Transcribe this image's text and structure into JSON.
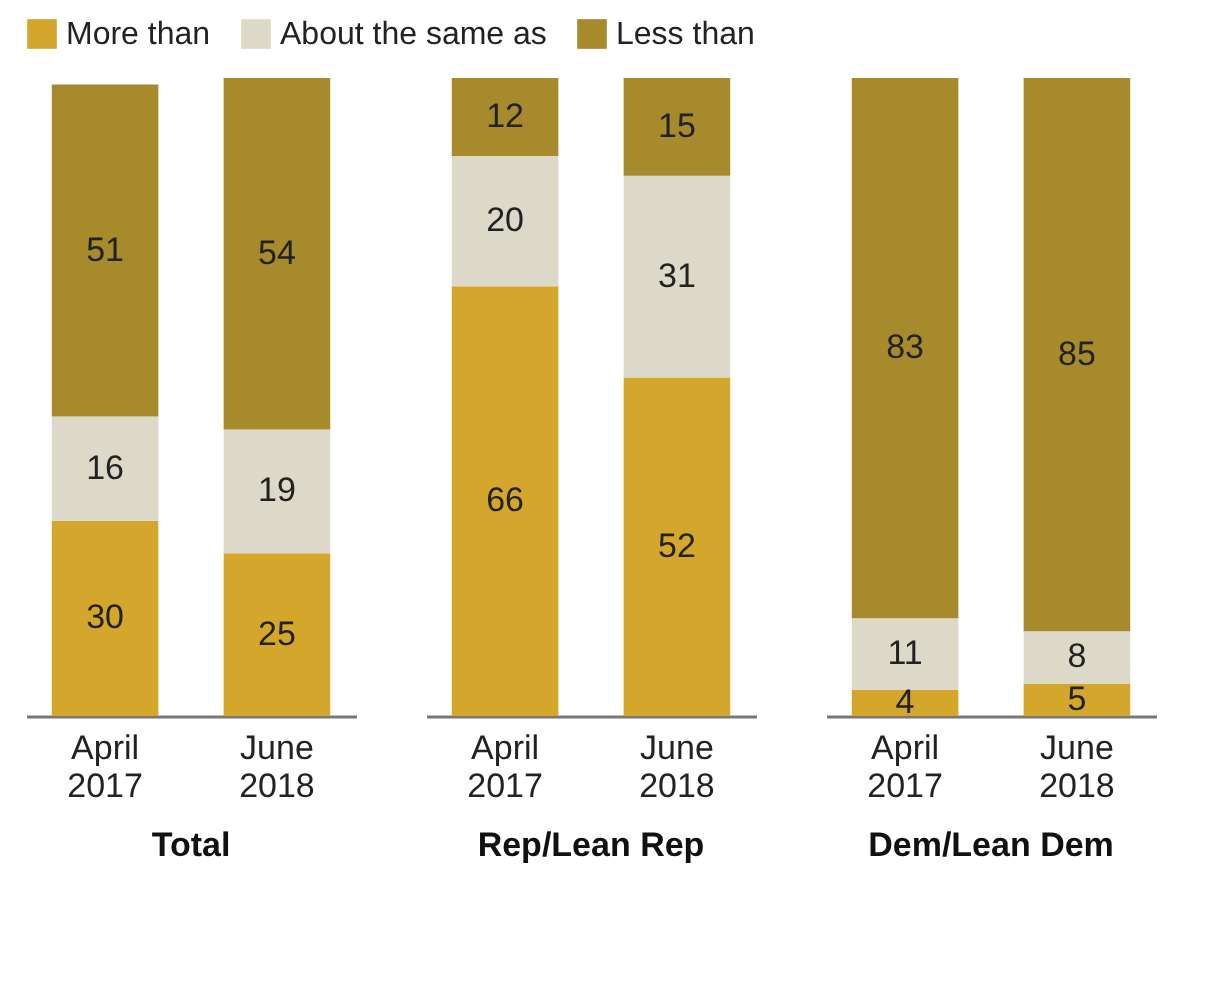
{
  "chart_data": [
    {
      "type": "bar",
      "title": "Total",
      "categories": [
        "April 2017",
        "June 2018"
      ],
      "stacked": true,
      "data_labels": true,
      "legend": "top",
      "series": [
        {
          "name": "More than",
          "color": "#d4a72c",
          "values": [
            30,
            25
          ]
        },
        {
          "name": "About the same as",
          "color": "#ddd9c8",
          "values": [
            16,
            19
          ]
        },
        {
          "name": "Less than",
          "color": "#a68a2c",
          "values": [
            51,
            54
          ]
        }
      ]
    },
    {
      "type": "bar",
      "title": "Rep/Lean Rep",
      "categories": [
        "April 2017",
        "June 2018"
      ],
      "stacked": true,
      "data_labels": true,
      "series": [
        {
          "name": "More than",
          "color": "#d4a72c",
          "values": [
            66,
            52
          ]
        },
        {
          "name": "About the same as",
          "color": "#ddd9c8",
          "values": [
            20,
            31
          ]
        },
        {
          "name": "Less than",
          "color": "#a68a2c",
          "values": [
            12,
            15
          ]
        }
      ]
    },
    {
      "type": "bar",
      "title": "Dem/Lean Dem",
      "categories": [
        "April 2017",
        "June 2018"
      ],
      "stacked": true,
      "data_labels": true,
      "series": [
        {
          "name": "More than",
          "color": "#d4a72c",
          "values": [
            4,
            5
          ]
        },
        {
          "name": "About the same as",
          "color": "#ddd9c8",
          "values": [
            11,
            8
          ]
        },
        {
          "name": "Less than",
          "color": "#a68a2c",
          "values": [
            83,
            85
          ]
        }
      ]
    }
  ]
}
